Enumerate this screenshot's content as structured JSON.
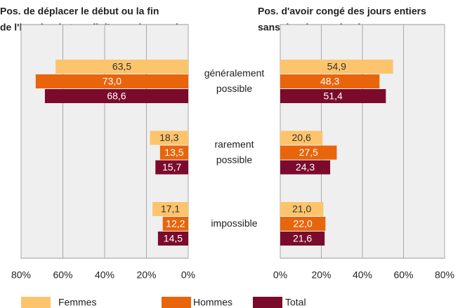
{
  "categories": [
    "généralement possible",
    "rarement possible",
    "impossible"
  ],
  "series": [
    {
      "name": "Femmes",
      "color": "#fcc46c"
    },
    {
      "name": "Hommes",
      "color": "#e8650c"
    },
    {
      "name": "Total",
      "color": "#7b0b2c"
    }
  ],
  "chart_data": [
    {
      "type": "bar",
      "orientation": "horizontal",
      "x_reversed": true,
      "title": [
        "Pos. de déplacer le début ou la fin",
        "de l'horaire de travail d'au moins une h."
      ],
      "xlim": [
        0,
        80
      ],
      "xticks": [
        {
          "value": 0,
          "label": "0%"
        },
        {
          "value": 20,
          "label": "20%"
        },
        {
          "value": 40,
          "label": "40%"
        },
        {
          "value": 60,
          "label": "60%"
        },
        {
          "value": 80,
          "label": "80%"
        }
      ],
      "grid": true,
      "series": [
        {
          "values": [
            63.5,
            18.3,
            17.1
          ],
          "value_labels": [
            "63,5",
            "18,3",
            "17,1"
          ]
        },
        {
          "values": [
            73.0,
            13.5,
            12.2
          ],
          "value_labels": [
            "73,0",
            "13,5",
            "12,2"
          ]
        },
        {
          "values": [
            68.6,
            15.7,
            14.5
          ],
          "value_labels": [
            "68,6",
            "15,7",
            "14,5"
          ]
        }
      ]
    },
    {
      "type": "bar",
      "orientation": "horizontal",
      "x_reversed": false,
      "title": [
        "Pos. d'avoir congé des jours entiers",
        "sans devoir prendre des vacances"
      ],
      "xlim": [
        0,
        80
      ],
      "xticks": [
        {
          "value": 0,
          "label": "0%"
        },
        {
          "value": 20,
          "label": "20%"
        },
        {
          "value": 40,
          "label": "40%"
        },
        {
          "value": 60,
          "label": "60%"
        },
        {
          "value": 80,
          "label": "80%"
        }
      ],
      "grid": true,
      "series": [
        {
          "values": [
            54.9,
            20.6,
            21.0
          ],
          "value_labels": [
            "54,9",
            "20,6",
            "21,0"
          ]
        },
        {
          "values": [
            48.3,
            27.5,
            22.0
          ],
          "value_labels": [
            "48,3",
            "27,5",
            "22,0"
          ]
        },
        {
          "values": [
            51.4,
            24.3,
            21.6
          ],
          "value_labels": [
            "51,4",
            "24,3",
            "21,6"
          ]
        }
      ]
    }
  ]
}
